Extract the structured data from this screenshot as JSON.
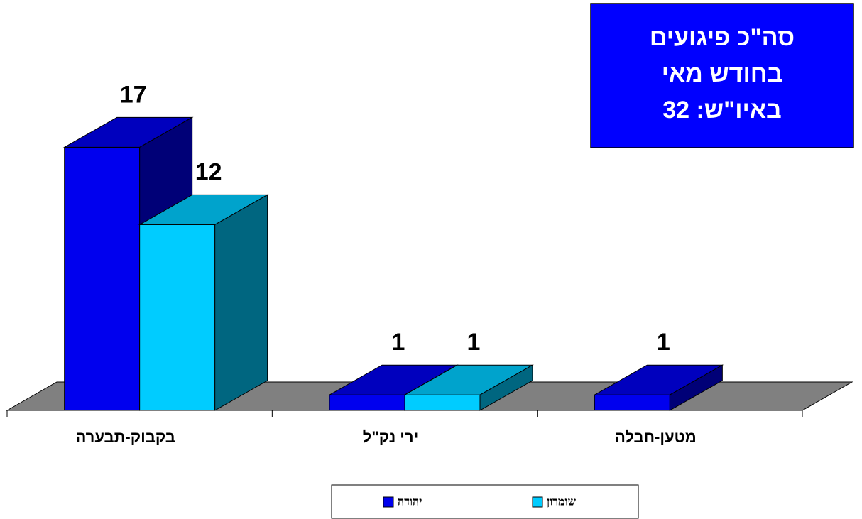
{
  "chart_data": {
    "type": "bar3d",
    "annotation": [
      "סה\"כ פיגועים",
      "בחודש מאי",
      "באיו\"ש: 32"
    ],
    "categories": [
      "בקבוק-תבערה",
      "ירי נק\"ל",
      "מטען-חבלה"
    ],
    "series": [
      {
        "name": "יהודה",
        "color": "#0000ee",
        "values": [
          17,
          1,
          1
        ]
      },
      {
        "name": "שומרון",
        "color": "#00ccff",
        "values": [
          12,
          1,
          null
        ]
      }
    ],
    "legend": "bottom"
  }
}
